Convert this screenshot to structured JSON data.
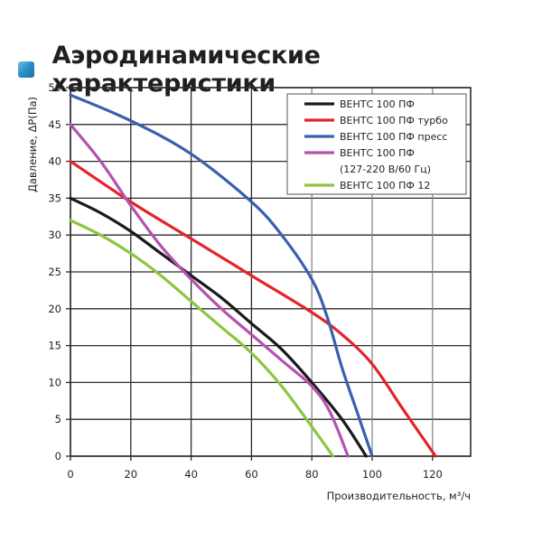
{
  "title": "Аэродинамические характеристики",
  "title_icon": "blue-square-icon",
  "chart_data": {
    "type": "line",
    "title": "Аэродинамические характеристики",
    "xlabel": "Производительность, м³/ч",
    "ylabel": "Давление, ΔP(Па)",
    "xlim": [
      0,
      130
    ],
    "ylim": [
      0,
      50
    ],
    "x_ticks": [
      0,
      20,
      40,
      60,
      80,
      100,
      120
    ],
    "y_ticks": [
      0,
      5,
      10,
      15,
      20,
      25,
      30,
      35,
      40,
      45,
      50
    ],
    "grid": true,
    "legend_position": "upper right",
    "series": [
      {
        "name": "ВЕНТС 100 ПФ",
        "color": "#1a1a1a",
        "x": [
          0,
          10,
          20,
          30,
          40,
          50,
          60,
          70,
          80,
          90,
          98
        ],
        "y": [
          35,
          33,
          30.5,
          27.5,
          24.5,
          21.5,
          18,
          14.5,
          10,
          5,
          0
        ]
      },
      {
        "name": "ВЕНТС 100 ПФ турбо",
        "color": "#e3242b",
        "x": [
          0,
          20,
          40,
          60,
          80,
          90,
          100,
          110,
          121
        ],
        "y": [
          40,
          34.5,
          29.5,
          24.5,
          19.5,
          16.5,
          12.5,
          6.5,
          0
        ]
      },
      {
        "name": "ВЕНТС 100 ПФ пресс",
        "color": "#3a5fad",
        "x": [
          0,
          20,
          40,
          60,
          70,
          80,
          85,
          90,
          95,
          100
        ],
        "y": [
          49,
          45.5,
          41,
          34.5,
          30,
          24,
          19,
          12,
          6,
          0
        ]
      },
      {
        "name": "ВЕНТС 100 ПФ (127-220 В/60 Гц)",
        "color": "#b552b0",
        "x": [
          0,
          10,
          20,
          30,
          40,
          50,
          60,
          70,
          80,
          86,
          92
        ],
        "y": [
          45,
          40,
          34,
          28.5,
          24,
          20,
          16.5,
          13,
          9.5,
          6,
          0
        ]
      },
      {
        "name": "ВЕНТС 100 ПФ 12",
        "color": "#8cc63f",
        "x": [
          0,
          10,
          20,
          30,
          40,
          50,
          60,
          70,
          80,
          87
        ],
        "y": [
          32,
          30,
          27.5,
          24.5,
          21,
          17.5,
          14,
          9.5,
          4,
          0
        ]
      }
    ]
  },
  "legend": {
    "items": [
      {
        "line1": "ВЕНТС 100 ПФ",
        "line2": ""
      },
      {
        "line1": "ВЕНТС 100 ПФ турбо",
        "line2": ""
      },
      {
        "line1": "ВЕНТС 100 ПФ пресс",
        "line2": ""
      },
      {
        "line1": "ВЕНТС 100 ПФ",
        "line2": "(127-220 В/60 Гц)"
      },
      {
        "line1": "ВЕНТС 100 ПФ 12",
        "line2": ""
      }
    ]
  }
}
